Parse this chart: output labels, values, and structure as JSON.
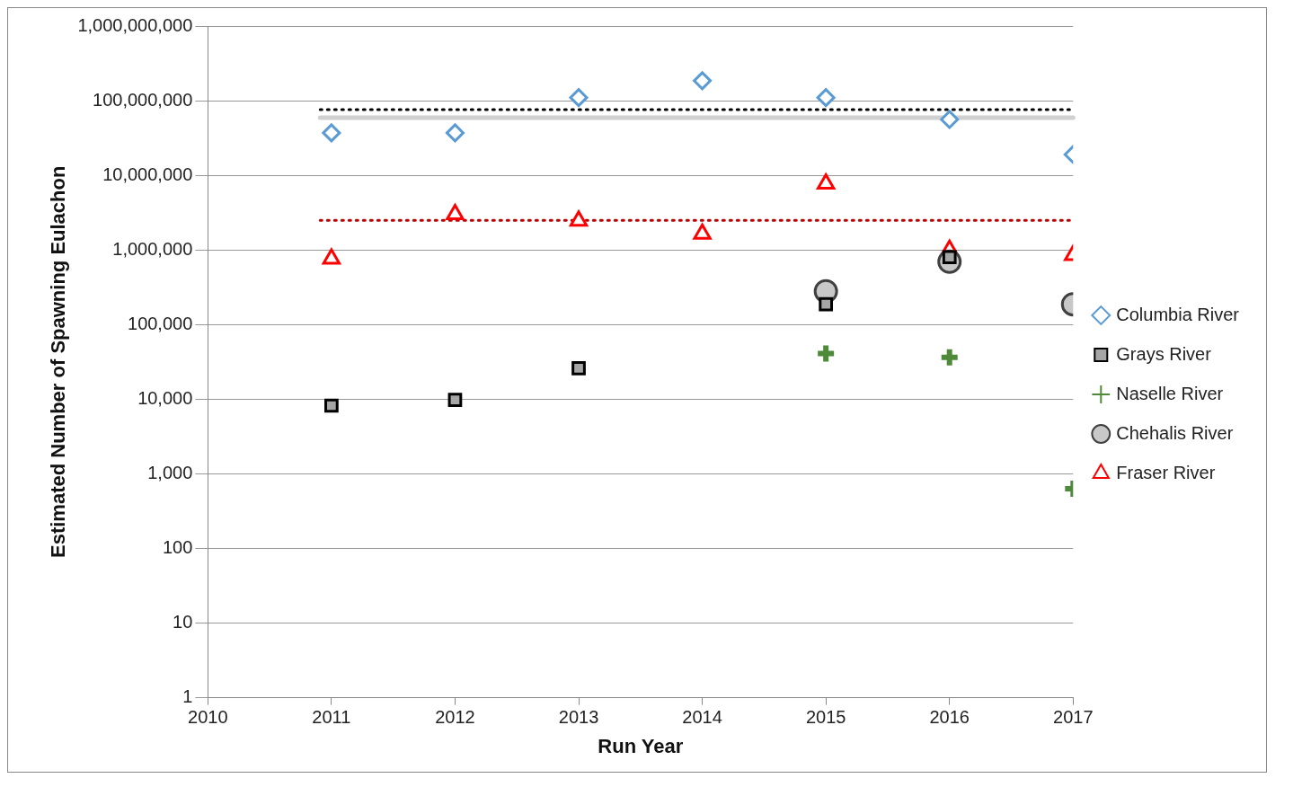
{
  "chart_data": {
    "type": "scatter",
    "xlabel": "Run Year",
    "ylabel": "Estimated Number of Spawning Eulachon",
    "xlim": [
      2010,
      2017
    ],
    "xticks": [
      2010,
      2011,
      2012,
      2013,
      2014,
      2015,
      2016,
      2017
    ],
    "ylim": [
      1,
      1000000000
    ],
    "log": "y",
    "yticks": [
      1,
      10,
      100,
      {
        "value": 1000,
        "label": "1,000"
      },
      {
        "value": 10000,
        "label": "10,000"
      },
      {
        "value": 100000,
        "label": "100,000"
      },
      {
        "value": 1000000,
        "label": "1,000,000"
      },
      {
        "value": 10000000,
        "label": "10,000,000"
      },
      {
        "value": 100000000,
        "label": "100,000,000"
      },
      {
        "value": 1000000000,
        "label": "1,000,000,000"
      }
    ],
    "grid": "y",
    "legend": "right",
    "series": [
      {
        "name": "Columbia River",
        "color": "#5b9bd5",
        "marker": "diamond",
        "x": [
          2011,
          2012,
          2013,
          2014,
          2015,
          2016,
          2017
        ],
        "values": [
          37000000,
          37000000,
          110000000,
          185000000,
          110000000,
          56000000,
          19000000
        ]
      },
      {
        "name": "Grays River",
        "color": "#000000",
        "marker": "square",
        "x": [
          2011,
          2012,
          2013,
          2015,
          2016
        ],
        "values": [
          8200,
          9800,
          26000,
          187000,
          800000
        ]
      },
      {
        "name": "Naselle River",
        "color": "#4e8a3a",
        "marker": "cross",
        "x": [
          2015,
          2016,
          2017
        ],
        "values": [
          41000,
          36500,
          630
        ]
      },
      {
        "name": "Chehalis River",
        "color": "#404040",
        "marker": "circle",
        "x": [
          2015,
          2016,
          2017
        ],
        "values": [
          279000,
          697000,
          187000
        ]
      },
      {
        "name": "Fraser River",
        "color": "#ff0000",
        "marker": "triangle",
        "x": [
          2011,
          2012,
          2013,
          2014,
          2015,
          2016,
          2017
        ],
        "values": [
          760000,
          3000000,
          2450000,
          1640000,
          7700000,
          1000000,
          850000
        ]
      }
    ],
    "ref_lines": [
      {
        "axis": "y",
        "value": 76000000,
        "color": "#000000",
        "line_style": "dotted"
      },
      {
        "axis": "y",
        "value": 59000000,
        "color": "#d0d0d0",
        "line_style": "solid"
      },
      {
        "axis": "y",
        "value": 2500000,
        "color": "#c00000",
        "line_style": "dotted"
      }
    ]
  }
}
